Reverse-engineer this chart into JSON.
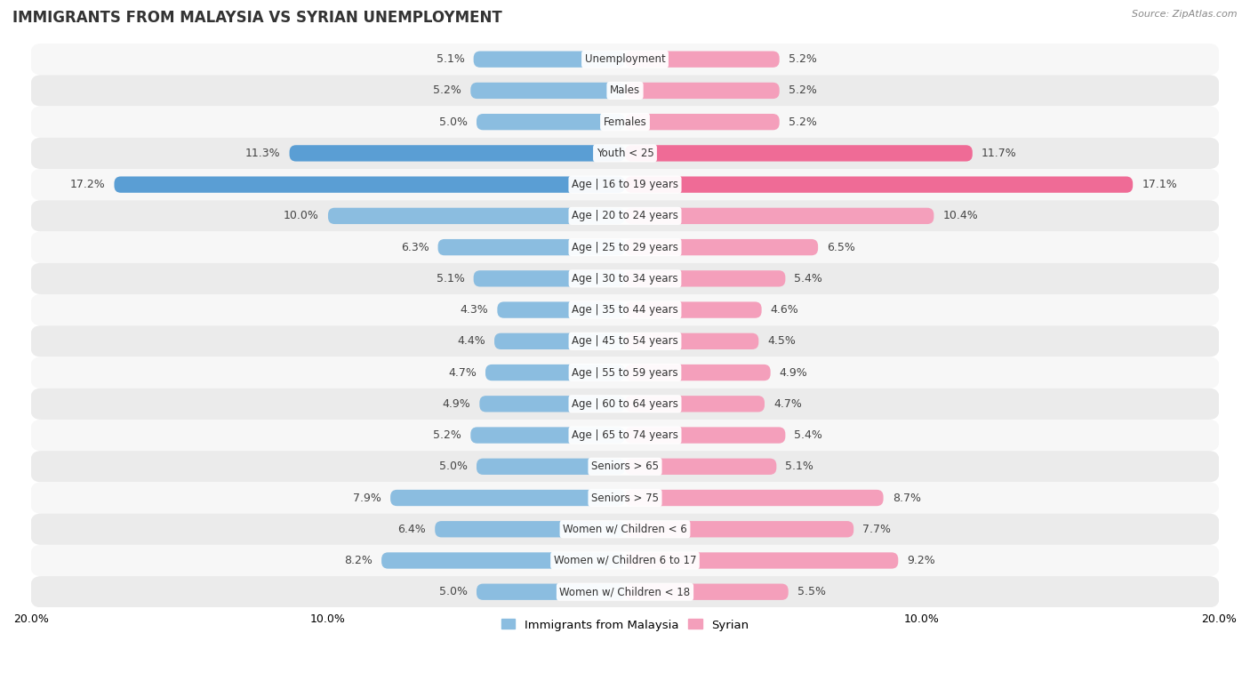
{
  "title": "IMMIGRANTS FROM MALAYSIA VS SYRIAN UNEMPLOYMENT",
  "source": "Source: ZipAtlas.com",
  "categories": [
    "Unemployment",
    "Males",
    "Females",
    "Youth < 25",
    "Age | 16 to 19 years",
    "Age | 20 to 24 years",
    "Age | 25 to 29 years",
    "Age | 30 to 34 years",
    "Age | 35 to 44 years",
    "Age | 45 to 54 years",
    "Age | 55 to 59 years",
    "Age | 60 to 64 years",
    "Age | 65 to 74 years",
    "Seniors > 65",
    "Seniors > 75",
    "Women w/ Children < 6",
    "Women w/ Children 6 to 17",
    "Women w/ Children < 18"
  ],
  "malaysia_values": [
    5.1,
    5.2,
    5.0,
    11.3,
    17.2,
    10.0,
    6.3,
    5.1,
    4.3,
    4.4,
    4.7,
    4.9,
    5.2,
    5.0,
    7.9,
    6.4,
    8.2,
    5.0
  ],
  "syrian_values": [
    5.2,
    5.2,
    5.2,
    11.7,
    17.1,
    10.4,
    6.5,
    5.4,
    4.6,
    4.5,
    4.9,
    4.7,
    5.4,
    5.1,
    8.7,
    7.7,
    9.2,
    5.5
  ],
  "malaysia_color": "#8BBDE0",
  "syrian_color": "#F49FBB",
  "malaysia_highlight_color": "#5A9ED4",
  "syrian_highlight_color": "#EF6B96",
  "background_color": "#ffffff",
  "row_light_color": "#f7f7f7",
  "row_dark_color": "#ebebeb",
  "xlim": 20.0,
  "bar_height": 0.52,
  "legend_malaysia": "Immigrants from Malaysia",
  "legend_syrian": "Syrian",
  "label_fontsize": 9,
  "category_fontsize": 8.5,
  "title_fontsize": 12,
  "highlight_rows": [
    3,
    4
  ]
}
